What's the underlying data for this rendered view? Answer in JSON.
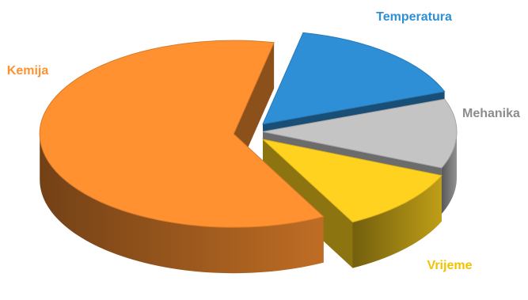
{
  "chart_data": {
    "type": "pie",
    "style": "3d-exploded",
    "title": "",
    "legend": "none",
    "slices": [
      {
        "label": "Temperatura",
        "value": 16,
        "color": "#2E8FD6"
      },
      {
        "label": "Mehanika",
        "value": 12,
        "color": "#C4C4C4"
      },
      {
        "label": "Vrijeme",
        "value": 11,
        "color": "#FFD21F"
      },
      {
        "label": "Kemija",
        "value": 61,
        "color": "#FF9130"
      }
    ]
  }
}
